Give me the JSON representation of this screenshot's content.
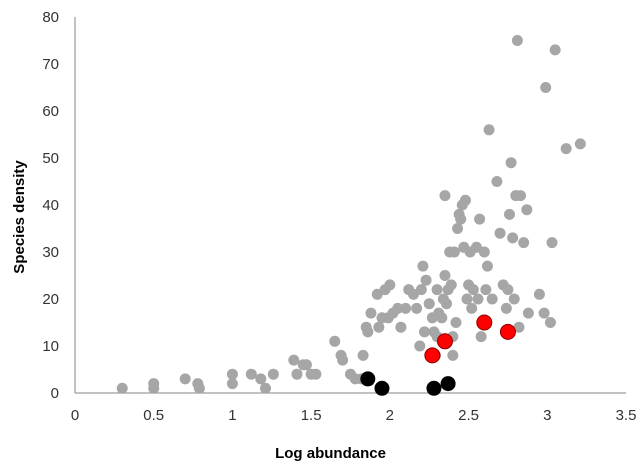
{
  "chart_data": {
    "type": "scatter",
    "title": "",
    "xlabel": "Log abundance",
    "ylabel": "Species density",
    "xlim": [
      0,
      3.5
    ],
    "ylim": [
      0,
      80
    ],
    "xticks": [
      "0",
      "0.5",
      "1",
      "1.5",
      "2",
      "2.5",
      "3",
      "3.5"
    ],
    "yticks": [
      "0",
      "10",
      "20",
      "30",
      "40",
      "50",
      "60",
      "70",
      "80"
    ],
    "xtick_values": [
      0,
      0.5,
      1,
      1.5,
      2,
      2.5,
      3,
      3.5
    ],
    "ytick_values": [
      0,
      10,
      20,
      30,
      40,
      50,
      60,
      70,
      80
    ],
    "grid": false,
    "legend": "none",
    "series": [
      {
        "color": "#a6a6a6",
        "points": [
          [
            0.3,
            1
          ],
          [
            0.5,
            1
          ],
          [
            0.5,
            2
          ],
          [
            0.7,
            3
          ],
          [
            0.78,
            2
          ],
          [
            0.79,
            1
          ],
          [
            1.0,
            2
          ],
          [
            1.0,
            4
          ],
          [
            1.12,
            4
          ],
          [
            1.18,
            3
          ],
          [
            1.21,
            1
          ],
          [
            1.26,
            4
          ],
          [
            1.39,
            7
          ],
          [
            1.41,
            4
          ],
          [
            1.45,
            6
          ],
          [
            1.47,
            6
          ],
          [
            1.5,
            4
          ],
          [
            1.53,
            4
          ],
          [
            1.65,
            11
          ],
          [
            1.69,
            8
          ],
          [
            1.7,
            7
          ],
          [
            1.75,
            4
          ],
          [
            1.78,
            3
          ],
          [
            1.82,
            3
          ],
          [
            1.83,
            8
          ],
          [
            1.85,
            14
          ],
          [
            1.86,
            13
          ],
          [
            1.88,
            17
          ],
          [
            1.92,
            21
          ],
          [
            1.93,
            14
          ],
          [
            1.95,
            16
          ],
          [
            1.97,
            22
          ],
          [
            1.99,
            16
          ],
          [
            2.0,
            23
          ],
          [
            2.02,
            17
          ],
          [
            2.05,
            18
          ],
          [
            2.07,
            14
          ],
          [
            2.1,
            18
          ],
          [
            2.12,
            22
          ],
          [
            2.15,
            21
          ],
          [
            2.17,
            18
          ],
          [
            2.19,
            10
          ],
          [
            2.2,
            22
          ],
          [
            2.21,
            27
          ],
          [
            2.22,
            13
          ],
          [
            2.23,
            24
          ],
          [
            2.25,
            19
          ],
          [
            2.27,
            16
          ],
          [
            2.28,
            13
          ],
          [
            2.29,
            8
          ],
          [
            2.3,
            12
          ],
          [
            2.3,
            22
          ],
          [
            2.31,
            17
          ],
          [
            2.33,
            16
          ],
          [
            2.34,
            20
          ],
          [
            2.35,
            42
          ],
          [
            2.35,
            25
          ],
          [
            2.36,
            19
          ],
          [
            2.37,
            22
          ],
          [
            2.38,
            30
          ],
          [
            2.39,
            23
          ],
          [
            2.4,
            12
          ],
          [
            2.4,
            8
          ],
          [
            2.41,
            30
          ],
          [
            2.42,
            15
          ],
          [
            2.43,
            35
          ],
          [
            2.44,
            38
          ],
          [
            2.45,
            37
          ],
          [
            2.46,
            40
          ],
          [
            2.47,
            31
          ],
          [
            2.48,
            41
          ],
          [
            2.49,
            20
          ],
          [
            2.5,
            23
          ],
          [
            2.51,
            30
          ],
          [
            2.52,
            18
          ],
          [
            2.53,
            22
          ],
          [
            2.55,
            31
          ],
          [
            2.56,
            20
          ],
          [
            2.57,
            37
          ],
          [
            2.58,
            12
          ],
          [
            2.6,
            30
          ],
          [
            2.61,
            22
          ],
          [
            2.62,
            27
          ],
          [
            2.63,
            56
          ],
          [
            2.65,
            20
          ],
          [
            2.68,
            45
          ],
          [
            2.7,
            34
          ],
          [
            2.72,
            23
          ],
          [
            2.74,
            18
          ],
          [
            2.75,
            22
          ],
          [
            2.76,
            38
          ],
          [
            2.77,
            49
          ],
          [
            2.78,
            33
          ],
          [
            2.79,
            20
          ],
          [
            2.8,
            42
          ],
          [
            2.81,
            75
          ],
          [
            2.82,
            14
          ],
          [
            2.83,
            42
          ],
          [
            2.85,
            32
          ],
          [
            2.87,
            39
          ],
          [
            2.88,
            17
          ],
          [
            2.95,
            21
          ],
          [
            2.98,
            17
          ],
          [
            2.99,
            65
          ],
          [
            3.02,
            15
          ],
          [
            3.03,
            32
          ],
          [
            3.05,
            73
          ],
          [
            3.12,
            52
          ],
          [
            3.21,
            53
          ]
        ]
      },
      {
        "color": "#ff0000",
        "points": [
          [
            2.27,
            8
          ],
          [
            2.35,
            11
          ],
          [
            2.6,
            15
          ],
          [
            2.75,
            13
          ]
        ]
      },
      {
        "color": "#000000",
        "points": [
          [
            1.86,
            3
          ],
          [
            1.95,
            1
          ],
          [
            2.28,
            1
          ],
          [
            2.37,
            2
          ]
        ]
      }
    ]
  }
}
